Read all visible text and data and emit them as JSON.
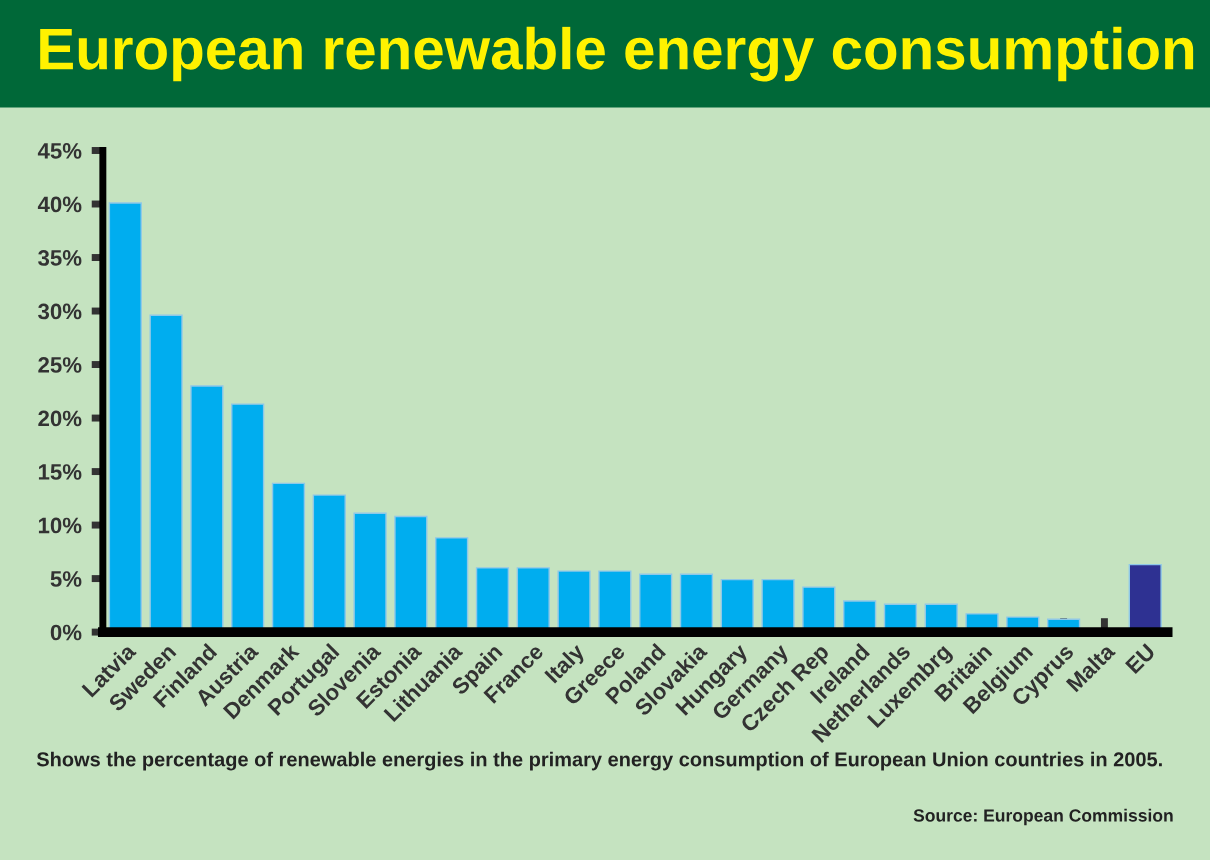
{
  "chart_data": {
    "type": "bar",
    "title": "European renewable energy consumption",
    "categories": [
      "Latvia",
      "Sweden",
      "Finland",
      "Austria",
      "Denmark",
      "Portugal",
      "Slovenia",
      "Estonia",
      "Lithuania",
      "Spain",
      "France",
      "Italy",
      "Greece",
      "Poland",
      "Slovakia",
      "Hungary",
      "Germany",
      "Czech Rep",
      "Ireland",
      "Netherlands",
      "Luxembrg",
      "Britain",
      "Belgium",
      "Cyprus",
      "Malta",
      "EU"
    ],
    "values": [
      40.1,
      29.6,
      23.0,
      21.3,
      13.9,
      12.8,
      11.1,
      10.8,
      8.8,
      6.0,
      6.0,
      5.7,
      5.7,
      5.4,
      5.4,
      4.9,
      4.9,
      4.2,
      2.9,
      2.6,
      2.6,
      1.7,
      1.4,
      1.2,
      null,
      6.3
    ],
    "colors": [
      "#00adef",
      "#00adef",
      "#00adef",
      "#00adef",
      "#00adef",
      "#00adef",
      "#00adef",
      "#00adef",
      "#00adef",
      "#00adef",
      "#00adef",
      "#00adef",
      "#00adef",
      "#00adef",
      "#00adef",
      "#00adef",
      "#00adef",
      "#00adef",
      "#00adef",
      "#00adef",
      "#00adef",
      "#00adef",
      "#00adef",
      "#00adef",
      null,
      "#2e3192"
    ],
    "ylim": [
      0,
      45
    ],
    "yticks": [
      {
        "value": 0,
        "label": "0%"
      },
      {
        "value": 5,
        "label": "5%"
      },
      {
        "value": 10,
        "label": "10%"
      },
      {
        "value": 15,
        "label": "15%"
      },
      {
        "value": 20,
        "label": "20%"
      },
      {
        "value": 25,
        "label": "25%"
      },
      {
        "value": 30,
        "label": "30%"
      },
      {
        "value": 35,
        "label": "35%"
      },
      {
        "value": 40,
        "label": "40%"
      },
      {
        "value": 45,
        "label": "45%"
      }
    ],
    "grid": false,
    "annotations": [
      "Shows the percentage of renewable energies in the primary energy consumption of European Union countries in 2005.",
      "Source: European Commission"
    ]
  }
}
